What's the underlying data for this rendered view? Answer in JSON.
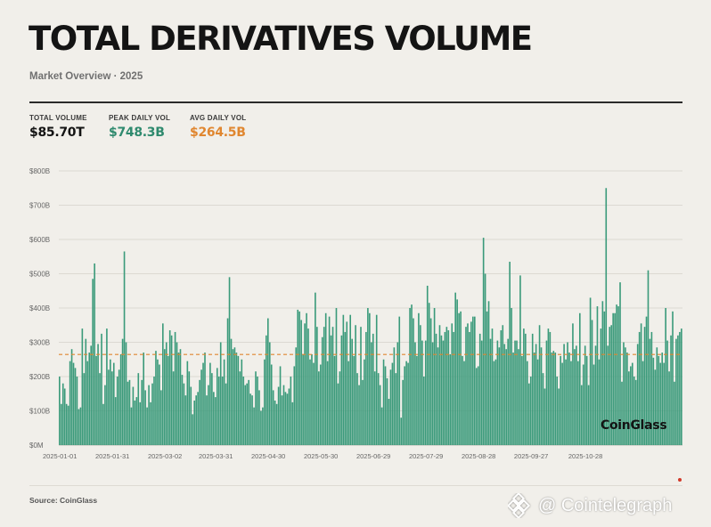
{
  "header": {
    "title": "TOTAL DERIVATIVES VOLUME",
    "subtitle": "Market Overview · 2025"
  },
  "stats": {
    "total_label": "TOTAL VOLUME",
    "total_value": "$85.70T",
    "peak_label": "PEAK DAILY VOL",
    "peak_value": "$748.3B",
    "avg_label": "AVG DAILY VOL",
    "avg_value": "$264.5B"
  },
  "colors": {
    "bar": "#3a9a7a",
    "average_line": "#e0862f",
    "grid": "#dcd9d2"
  },
  "chart_data": {
    "type": "bar",
    "title": "",
    "xlabel": "",
    "ylabel": "",
    "ylim": [
      0,
      800
    ],
    "unit": "B",
    "y_ticks": [
      "$0M",
      "$100B",
      "$200B",
      "$300B",
      "$400B",
      "$500B",
      "$600B",
      "$700B",
      "$800B"
    ],
    "x_ticks": [
      "2025-01-01",
      "2025-01-31",
      "2025-03-02",
      "2025-03-31",
      "2025-04-30",
      "2025-05-30",
      "2025-06-29",
      "2025-07-29",
      "2025-08-28",
      "2025-09-27",
      "2025-10-28"
    ],
    "average": 264.5,
    "average_line_style": "dashed",
    "watermark": "CoinGlass",
    "grid": true,
    "legend": "none",
    "x_start": "2025-01-01",
    "x_end": "2025-11-27",
    "values": [
      200,
      120,
      180,
      165,
      120,
      115,
      245,
      280,
      240,
      225,
      200,
      105,
      110,
      340,
      210,
      310,
      245,
      270,
      290,
      485,
      530,
      260,
      295,
      210,
      325,
      120,
      175,
      340,
      220,
      250,
      215,
      240,
      140,
      200,
      220,
      265,
      310,
      565,
      300,
      185,
      190,
      110,
      170,
      130,
      140,
      210,
      125,
      190,
      270,
      160,
      110,
      175,
      125,
      180,
      200,
      275,
      250,
      235,
      160,
      355,
      280,
      300,
      260,
      335,
      320,
      215,
      330,
      300,
      270,
      280,
      205,
      180,
      145,
      245,
      215,
      170,
      90,
      130,
      145,
      155,
      190,
      220,
      240,
      270,
      145,
      175,
      240,
      210,
      155,
      140,
      225,
      200,
      300,
      200,
      250,
      180,
      370,
      490,
      310,
      280,
      285,
      270,
      260,
      215,
      250,
      200,
      175,
      180,
      190,
      150,
      145,
      110,
      215,
      200,
      160,
      100,
      110,
      250,
      320,
      370,
      300,
      235,
      160,
      130,
      120,
      170,
      230,
      145,
      175,
      155,
      150,
      165,
      200,
      125,
      230,
      285,
      395,
      390,
      365,
      265,
      355,
      385,
      340,
      250,
      265,
      240,
      445,
      345,
      215,
      235,
      315,
      345,
      385,
      245,
      375,
      320,
      345,
      260,
      400,
      180,
      215,
      320,
      380,
      330,
      360,
      245,
      380,
      310,
      260,
      350,
      210,
      175,
      345,
      190,
      250,
      330,
      400,
      385,
      300,
      325,
      215,
      380,
      210,
      175,
      110,
      250,
      230,
      195,
      135,
      220,
      240,
      285,
      210,
      300,
      375,
      80,
      190,
      230,
      245,
      240,
      400,
      410,
      370,
      300,
      260,
      385,
      350,
      305,
      200,
      305,
      465,
      415,
      370,
      300,
      400,
      325,
      285,
      350,
      320,
      305,
      330,
      345,
      335,
      265,
      355,
      330,
      445,
      425,
      385,
      390,
      260,
      245,
      345,
      355,
      330,
      360,
      375,
      375,
      225,
      230,
      325,
      305,
      605,
      500,
      390,
      420,
      310,
      340,
      245,
      250,
      305,
      285,
      335,
      350,
      295,
      280,
      310,
      535,
      400,
      270,
      305,
      305,
      280,
      495,
      260,
      340,
      325,
      245,
      180,
      200,
      325,
      270,
      295,
      250,
      350,
      285,
      210,
      165,
      305,
      340,
      330,
      270,
      275,
      270,
      200,
      165,
      260,
      240,
      295,
      250,
      300,
      270,
      245,
      355,
      280,
      290,
      245,
      385,
      175,
      235,
      290,
      260,
      175,
      430,
      365,
      235,
      290,
      405,
      250,
      340,
      420,
      390,
      750,
      290,
      345,
      350,
      385,
      385,
      410,
      405,
      475,
      185,
      300,
      285,
      270,
      215,
      230,
      240,
      200,
      190,
      295,
      330,
      355,
      245,
      345,
      375,
      510,
      310,
      330,
      255,
      220,
      285,
      260,
      240,
      270,
      240,
      400,
      305,
      215,
      320,
      390,
      185,
      310,
      320,
      330,
      340
    ]
  }
}
